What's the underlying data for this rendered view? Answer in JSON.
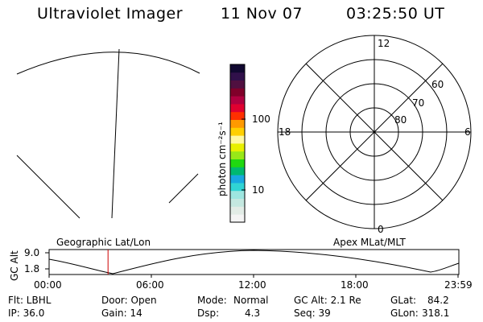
{
  "header": {
    "title": "Ultraviolet Imager",
    "date": "11 Nov 07",
    "time": "03:25:50 UT"
  },
  "colorbar": {
    "unit_label": "photon cm⁻²s⁻¹",
    "tick_100": "100",
    "tick_10": "10",
    "colors": [
      "#f4f4f4",
      "#e2ece6",
      "#c4e8e0",
      "#9ee6e0",
      "#30d4d4",
      "#18a8e0",
      "#00b870",
      "#20d810",
      "#98e818",
      "#e8f000",
      "#fff8a0",
      "#ffd000",
      "#ff9a00",
      "#ff3000",
      "#e00030",
      "#b00040",
      "#80002a",
      "#501040",
      "#30104a",
      "#100830"
    ]
  },
  "polar_plot": {
    "mlt_top": "12",
    "mlt_left": "18",
    "mlt_right": "6",
    "mlt_bottom": "0",
    "lat_60": "60",
    "lat_70": "70",
    "lat_80": "80"
  },
  "strip": {
    "left_title": "Geographic Lat/Lon",
    "right_title": "Apex MLat/MLT",
    "ylabel": "GC Alt",
    "ytick_top": "9.0",
    "ytick_bottom": "1.8",
    "xticks": [
      "00:00",
      "06:00",
      "12:00",
      "18:00",
      "23:59"
    ],
    "marker_time_fraction": 0.144,
    "marker_color": "#cc0000"
  },
  "info": {
    "row1": {
      "filter": "Flt: LBHL",
      "door": "Door: Open",
      "mode_label": "Mode:",
      "mode_value": "Normal",
      "gcalt": "GC Alt: 2.1 Re",
      "glat_label": "GLat:",
      "glat_value": "84.2"
    },
    "row2": {
      "ip": "IP: 36.0",
      "gain": "Gain: 14",
      "dsp_label": "Dsp:",
      "dsp_value": "4.3",
      "seq": "Seq: 39",
      "glon_label": "GLon:",
      "glon_value": "318.1"
    }
  }
}
